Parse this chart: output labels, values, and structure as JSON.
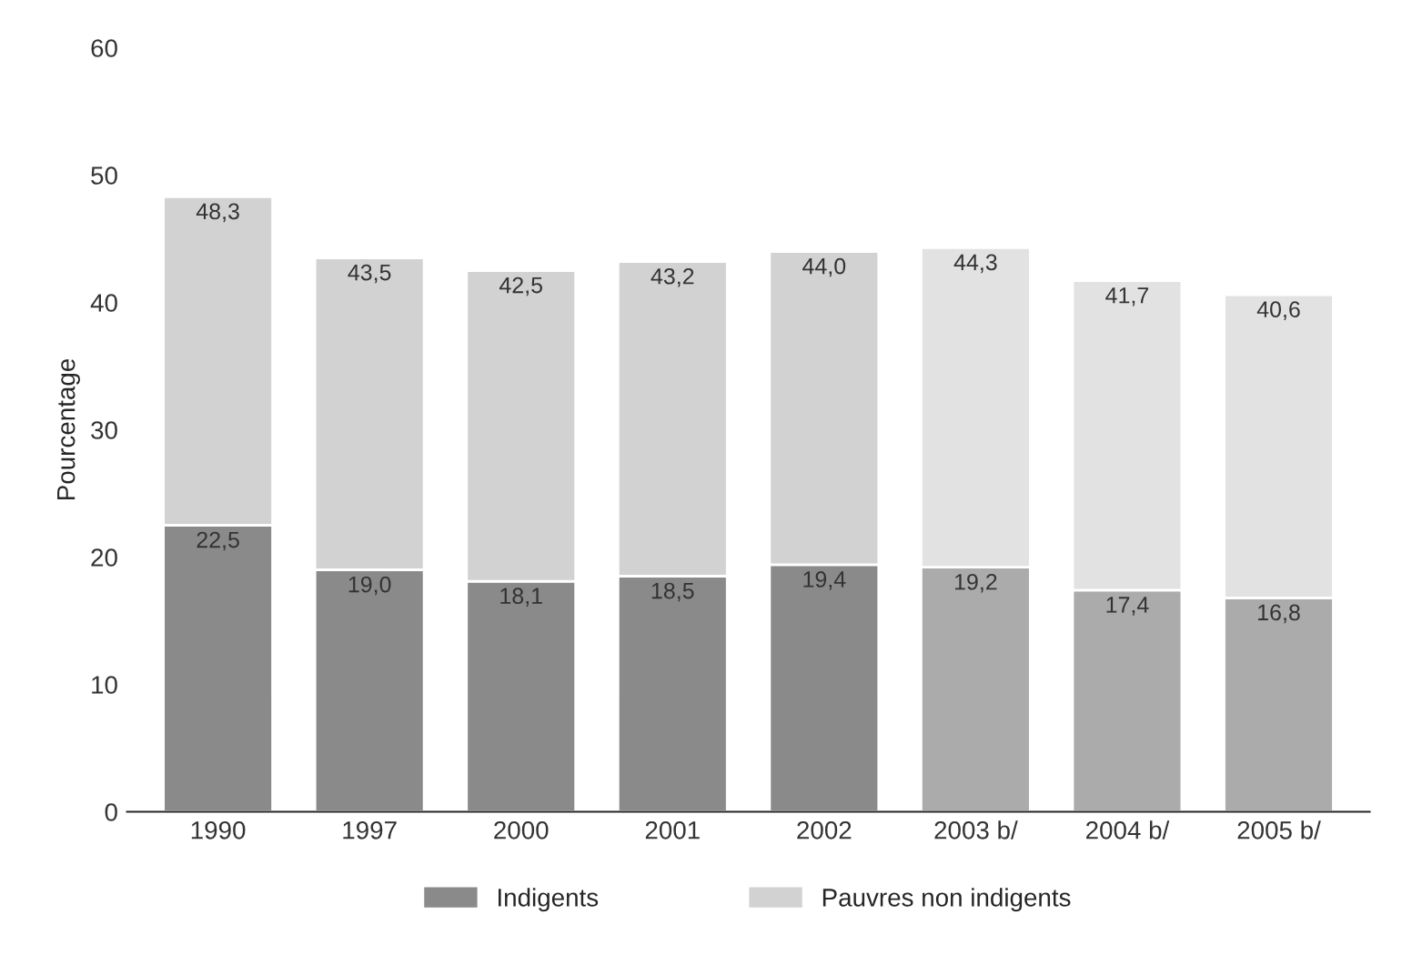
{
  "chart_data": {
    "type": "bar",
    "stacked": true,
    "ylabel": "Pourcentage",
    "categories": [
      "1990",
      "1997",
      "2000",
      "2001",
      "2002",
      "2003 b/",
      "2004 b/",
      "2005 b/"
    ],
    "series": [
      {
        "name": "Indigents",
        "color": "#8a8a8a",
        "colors": [
          "#8a8a8a",
          "#8a8a8a",
          "#8a8a8a",
          "#8a8a8a",
          "#8a8a8a",
          "#ababab",
          "#ababab",
          "#ababab"
        ],
        "values": [
          22.5,
          19.0,
          18.1,
          18.5,
          19.4,
          19.2,
          17.4,
          16.8
        ],
        "value_labels": [
          "22,5",
          "19,0",
          "18,1",
          "18,5",
          "19,4",
          "19,2",
          "17,4",
          "16,8"
        ]
      },
      {
        "name": "Pauvres non indigents",
        "color": "#d2d2d2",
        "colors": [
          "#d2d2d2",
          "#d2d2d2",
          "#d2d2d2",
          "#d2d2d2",
          "#d2d2d2",
          "#e2e2e2",
          "#e2e2e2",
          "#e2e2e2"
        ],
        "values": [
          25.8,
          24.5,
          24.4,
          24.7,
          24.6,
          25.1,
          24.3,
          23.8
        ]
      }
    ],
    "totals": [
      "48,3",
      "43,5",
      "42,5",
      "43,2",
      "44,0",
      "44,3",
      "41,7",
      "40,6"
    ],
    "ylim": [
      0,
      60
    ],
    "yticks": [
      0,
      10,
      20,
      30,
      40,
      50,
      60
    ],
    "grid": false,
    "legend": "bottom"
  }
}
